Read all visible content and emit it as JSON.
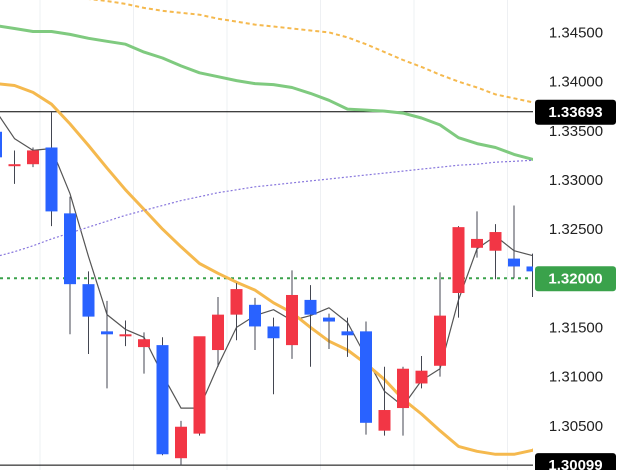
{
  "chart_data": {
    "type": "candlestick",
    "title": "",
    "xlabel": "",
    "ylabel": "",
    "ylim": [
      1.3005,
      1.3483
    ],
    "grid": "vertical",
    "legend": "none",
    "y_ticks": [
      "1.34500",
      "1.34000",
      "1.33500",
      "1.33000",
      "1.32500",
      "1.32000",
      "1.31500",
      "1.31000",
      "1.30500"
    ],
    "candles": [
      {
        "open": 1.3349,
        "high": 1.336,
        "low": 1.3318,
        "close": 1.3323
      },
      {
        "open": 1.3316,
        "high": 1.333,
        "low": 1.3296,
        "close": 1.3316
      },
      {
        "open": 1.3316,
        "high": 1.3333,
        "low": 1.3313,
        "close": 1.333
      },
      {
        "open": 1.3333,
        "high": 1.3369,
        "low": 1.3253,
        "close": 1.3268
      },
      {
        "open": 1.3266,
        "high": 1.3283,
        "low": 1.3143,
        "close": 1.3194
      },
      {
        "open": 1.3194,
        "high": 1.3207,
        "low": 1.3123,
        "close": 1.3161
      },
      {
        "open": 1.3146,
        "high": 1.3177,
        "low": 1.3088,
        "close": 1.3143
      },
      {
        "open": 1.3143,
        "high": 1.3157,
        "low": 1.3131,
        "close": 1.3143
      },
      {
        "open": 1.313,
        "high": 1.3145,
        "low": 1.3103,
        "close": 1.3138
      },
      {
        "open": 1.3132,
        "high": 1.314,
        "low": 1.302,
        "close": 1.3021
      },
      {
        "open": 1.3017,
        "high": 1.3055,
        "low": 1.301,
        "close": 1.3049
      },
      {
        "open": 1.3042,
        "high": 1.314,
        "low": 1.304,
        "close": 1.3141
      },
      {
        "open": 1.3127,
        "high": 1.3181,
        "low": 1.311,
        "close": 1.3163
      },
      {
        "open": 1.3163,
        "high": 1.3195,
        "low": 1.3137,
        "close": 1.3189
      },
      {
        "open": 1.3173,
        "high": 1.318,
        "low": 1.3127,
        "close": 1.3151
      },
      {
        "open": 1.3151,
        "high": 1.316,
        "low": 1.3082,
        "close": 1.3139
      },
      {
        "open": 1.3132,
        "high": 1.3208,
        "low": 1.3118,
        "close": 1.3183
      },
      {
        "open": 1.3178,
        "high": 1.3193,
        "low": 1.311,
        "close": 1.3163
      },
      {
        "open": 1.316,
        "high": 1.3164,
        "low": 1.3128,
        "close": 1.3156
      },
      {
        "open": 1.3146,
        "high": 1.316,
        "low": 1.312,
        "close": 1.3142
      },
      {
        "open": 1.3146,
        "high": 1.3156,
        "low": 1.3041,
        "close": 1.3053
      },
      {
        "open": 1.3045,
        "high": 1.311,
        "low": 1.304,
        "close": 1.3066
      },
      {
        "open": 1.3068,
        "high": 1.311,
        "low": 1.304,
        "close": 1.3108
      },
      {
        "open": 1.3093,
        "high": 1.3121,
        "low": 1.3088,
        "close": 1.3106
      },
      {
        "open": 1.3111,
        "high": 1.3206,
        "low": 1.31,
        "close": 1.3162
      },
      {
        "open": 1.3185,
        "high": 1.3253,
        "low": 1.316,
        "close": 1.3252
      },
      {
        "open": 1.3231,
        "high": 1.3268,
        "low": 1.3221,
        "close": 1.324
      },
      {
        "open": 1.3228,
        "high": 1.3255,
        "low": 1.3199,
        "close": 1.3247
      },
      {
        "open": 1.322,
        "high": 1.3274,
        "low": 1.32,
        "close": 1.3212
      },
      {
        "open": 1.3212,
        "high": 1.3225,
        "low": 1.3181,
        "close": 1.3207
      }
    ],
    "series": [
      {
        "values": [
          1.337,
          1.3342,
          1.333,
          1.3332,
          1.3286,
          1.3222,
          1.3163,
          1.3148,
          1.314,
          1.3102,
          1.3068,
          1.3068,
          1.3111,
          1.315,
          1.3162,
          1.3168,
          1.3157,
          1.3162,
          1.317,
          1.3155,
          1.312,
          1.3085,
          1.307,
          1.3096,
          1.3108,
          1.3178,
          1.323,
          1.3243,
          1.3228,
          1.3223,
          1.324
        ],
        "color": "#555555",
        "style": "solid"
      },
      {
        "values": [
          1.3398,
          1.3396,
          1.3389,
          1.3377,
          1.3357,
          1.3335,
          1.3312,
          1.329,
          1.327,
          1.325,
          1.3232,
          1.3215,
          1.3205,
          1.3196,
          1.3188,
          1.3175,
          1.3165,
          1.315,
          1.3136,
          1.3127,
          1.3113,
          1.3097,
          1.3077,
          1.3062,
          1.3045,
          1.3029,
          1.3024,
          1.3021,
          1.3021,
          1.3025,
          1.3036
        ],
        "color": "#f5b94e",
        "style": "solid"
      },
      {
        "values": [
          1.3457,
          1.3454,
          1.3451,
          1.3451,
          1.3448,
          1.3444,
          1.3441,
          1.3438,
          1.343,
          1.3424,
          1.3416,
          1.3409,
          1.3405,
          1.3401,
          1.3398,
          1.3397,
          1.3394,
          1.3388,
          1.3381,
          1.3372,
          1.3371,
          1.337,
          1.3368,
          1.3363,
          1.3356,
          1.3343,
          1.3337,
          1.3333,
          1.3326,
          1.3321,
          1.3318
        ],
        "color": "#7fca7f",
        "style": "solid"
      },
      {
        "values": [
          1.3491,
          1.3489,
          1.3488,
          1.3486,
          1.3485,
          1.3484,
          1.3482,
          1.3479,
          1.3475,
          1.3472,
          1.347,
          1.3468,
          1.3464,
          1.3461,
          1.3458,
          1.3456,
          1.3454,
          1.3452,
          1.345,
          1.3445,
          1.3438,
          1.343,
          1.3422,
          1.3415,
          1.3407,
          1.34,
          1.3394,
          1.3387,
          1.3383,
          1.3379,
          1.3374
        ],
        "color": "#f5b94e",
        "style": "dashed"
      },
      {
        "values": [
          1.3222,
          1.3227,
          1.3233,
          1.324,
          1.3246,
          1.3252,
          1.3258,
          1.3264,
          1.3269,
          1.3274,
          1.3279,
          1.3283,
          1.3287,
          1.329,
          1.3293,
          1.3295,
          1.3297,
          1.3299,
          1.3301,
          1.3303,
          1.3305,
          1.3307,
          1.3309,
          1.3311,
          1.3313,
          1.3315,
          1.3316,
          1.3318,
          1.3319,
          1.332,
          1.3321
        ],
        "color": "#8877dd",
        "style": "dotted"
      }
    ],
    "reference_lines": [
      {
        "value": 1.33693,
        "label": "1.33693",
        "line_color": "#000000",
        "badge_color": "#000000",
        "style": "solid"
      },
      {
        "value": 1.32,
        "label": "1.32000",
        "line_color": "#3aa24b",
        "badge_color": "#3aa24b",
        "style": "dotted"
      },
      {
        "value": 1.30099,
        "label": "1.30099",
        "line_color": "#000000",
        "badge_color": "#000000",
        "style": "solid"
      }
    ],
    "colors": {
      "up": "#f23645",
      "down": "#2962ff",
      "wick": "#434651",
      "grid": "#eef0f3"
    }
  }
}
